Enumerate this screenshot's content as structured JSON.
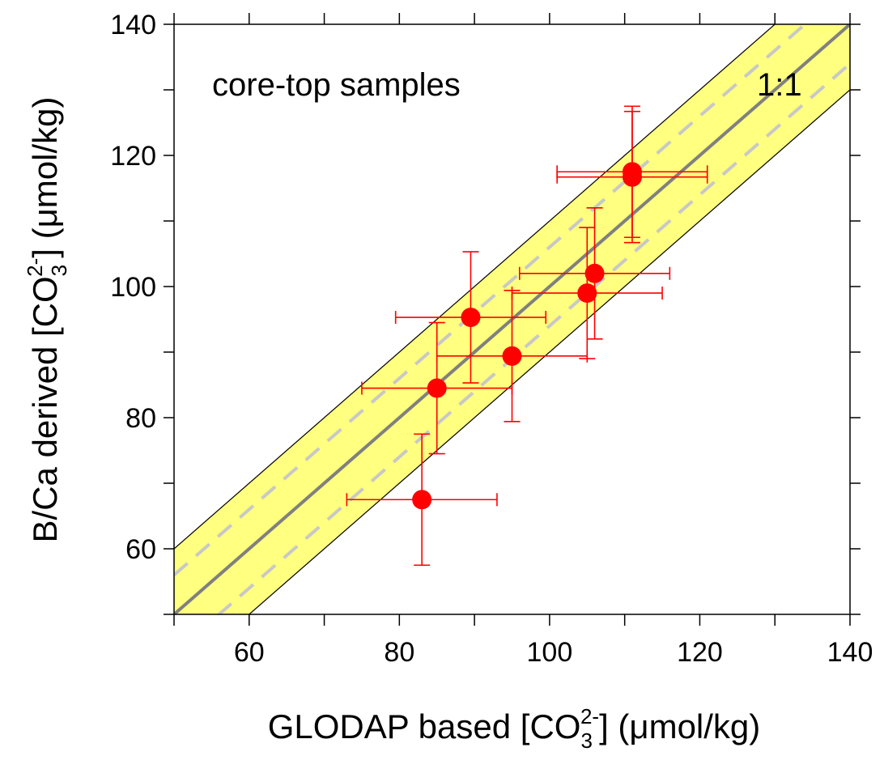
{
  "chart_data": {
    "type": "scatter",
    "x_label": {
      "before": "GLODAP based [CO",
      "sub": "3",
      "sup": "2-",
      "after": "] (μmol/kg)"
    },
    "y_label": {
      "before": "B/Ca derived [CO",
      "sub": "3",
      "sup": "2-",
      "after": "] (μmol/kg)"
    },
    "annotations": [
      "core-top samples",
      "1:1"
    ],
    "xlim": [
      50,
      140
    ],
    "ylim": [
      50,
      140
    ],
    "xticks": [
      60,
      80,
      100,
      120,
      140
    ],
    "yticks": [
      60,
      80,
      100,
      120,
      140
    ],
    "xminor_ticks": [
      50,
      70,
      90,
      110,
      130
    ],
    "yminor_ticks": [
      50,
      70,
      90,
      110,
      130
    ],
    "band_offset": 10,
    "dashed_offset": 6,
    "band_color": "#ffff80",
    "line_color": "#808080",
    "dashed_color": "#c8c8c8",
    "series": [
      {
        "color": "#ff0000",
        "x": [
          83,
          85,
          89.5,
          95,
          105,
          106,
          111,
          111
        ],
        "values": [
          67.5,
          84.5,
          95.3,
          89.4,
          99,
          102,
          117.5,
          116.7
        ],
        "x_errors": [
          10,
          10,
          10,
          10,
          10,
          10,
          10,
          10
        ],
        "y_errors": [
          10,
          10,
          10,
          10,
          10,
          10,
          10,
          10
        ]
      }
    ]
  }
}
